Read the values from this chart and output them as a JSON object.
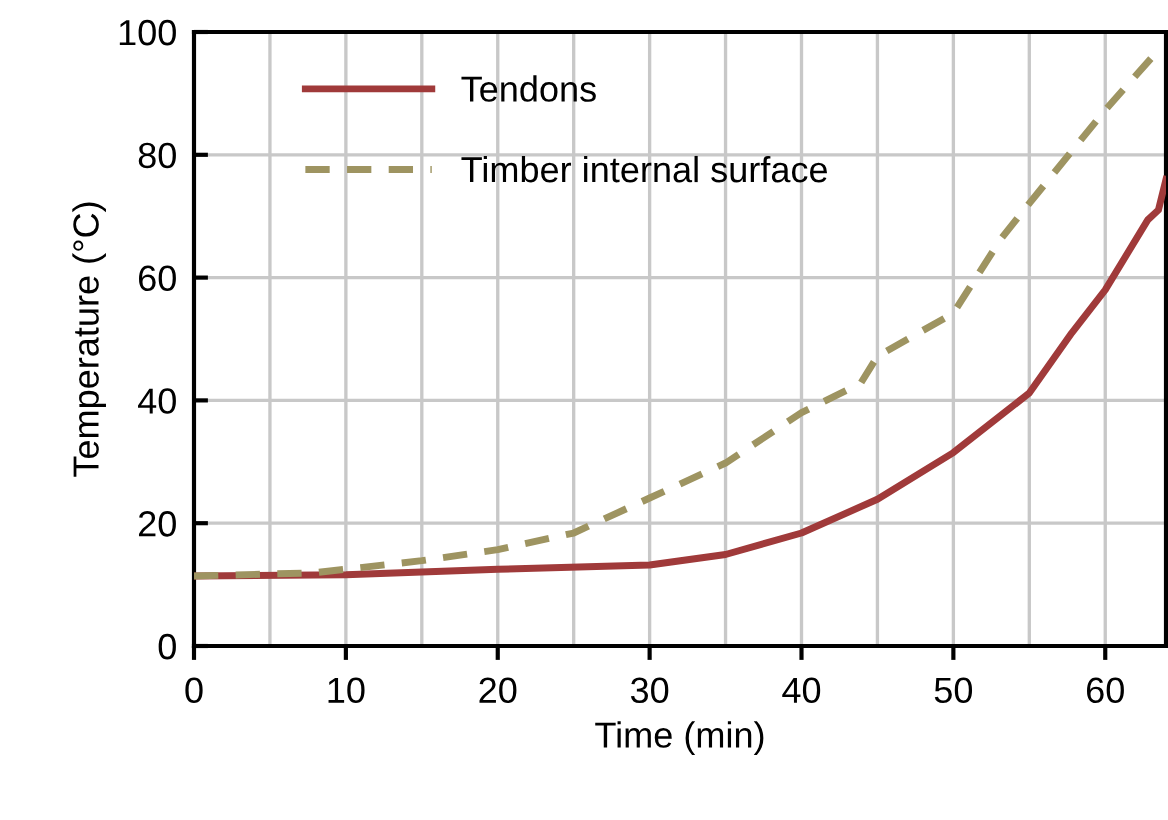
{
  "chart_data": {
    "type": "line",
    "xlabel": "Time (min)",
    "ylabel": "Temperature (°C)",
    "xlim": [
      0,
      64
    ],
    "xticks": [
      0,
      10,
      20,
      30,
      40,
      50,
      60
    ],
    "ylim": [
      0,
      100
    ],
    "yticks": [
      0,
      20,
      40,
      60,
      80,
      100
    ],
    "grid": true,
    "legend": "top left",
    "marker": "none",
    "series": [
      {
        "name": "Tendons",
        "color": "#a03a3a",
        "line_style": "solid",
        "x": [
          0,
          10,
          20,
          30,
          35,
          40,
          45,
          50,
          55,
          57.8,
          60,
          62.8,
          63.5,
          64
        ],
        "values": [
          11.4,
          11.6,
          12.5,
          13.2,
          14.9,
          18.4,
          23.9,
          31.5,
          41.2,
          51,
          58,
          69.4,
          71,
          76
        ]
      },
      {
        "name": "Timber internal surface",
        "color": "#9e9461",
        "line_style": "dashed",
        "x": [
          0,
          7.8,
          10,
          15,
          20,
          25,
          30,
          35,
          40,
          43.9,
          45,
          50,
          53.1,
          55,
          60,
          63.3
        ],
        "values": [
          11.4,
          11.9,
          12.5,
          13.9,
          15.7,
          18.4,
          24.1,
          29.8,
          38,
          42.8,
          47.2,
          54.2,
          66.2,
          72.1,
          87.3,
          96.5
        ]
      }
    ]
  }
}
